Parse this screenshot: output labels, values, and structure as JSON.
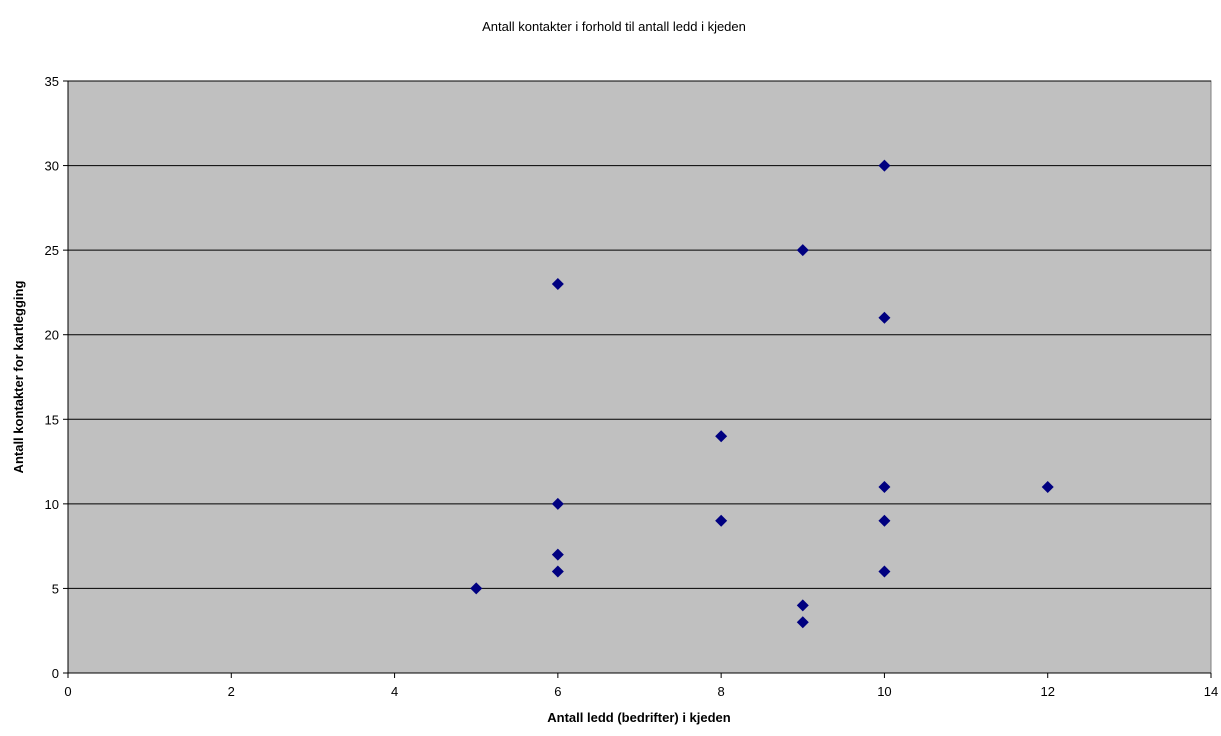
{
  "chart_data": {
    "type": "scatter",
    "title": "Antall kontakter i forhold til antall ledd i kjeden",
    "xlabel": "Antall ledd (bedrifter) i kjeden",
    "ylabel": "Antall kontakter for kartlegging",
    "xlim": [
      0,
      14
    ],
    "ylim": [
      0,
      35
    ],
    "xticks": [
      0,
      2,
      4,
      6,
      8,
      10,
      12,
      14
    ],
    "yticks": [
      0,
      5,
      10,
      15,
      20,
      25,
      30,
      35
    ],
    "grid": "horizontal",
    "plot_background": "#c0c0c0",
    "marker_color": "#000080",
    "points": [
      {
        "x": 5,
        "y": 5
      },
      {
        "x": 6,
        "y": 23
      },
      {
        "x": 6,
        "y": 10
      },
      {
        "x": 6,
        "y": 7
      },
      {
        "x": 6,
        "y": 6
      },
      {
        "x": 8,
        "y": 14
      },
      {
        "x": 8,
        "y": 9
      },
      {
        "x": 9,
        "y": 25
      },
      {
        "x": 9,
        "y": 4
      },
      {
        "x": 9,
        "y": 3
      },
      {
        "x": 10,
        "y": 30
      },
      {
        "x": 10,
        "y": 21
      },
      {
        "x": 10,
        "y": 11
      },
      {
        "x": 10,
        "y": 9
      },
      {
        "x": 10,
        "y": 6
      },
      {
        "x": 12,
        "y": 11
      }
    ]
  }
}
